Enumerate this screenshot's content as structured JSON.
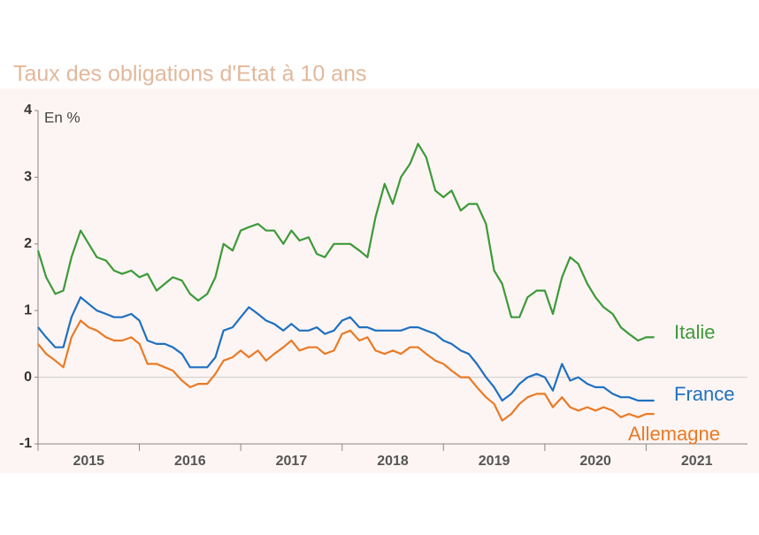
{
  "chart_data": {
    "type": "line",
    "title": "Taux des obligations d'Etat à 10 ans",
    "y_label": "En %",
    "x": [
      2015.0,
      2015.08,
      2015.17,
      2015.25,
      2015.33,
      2015.42,
      2015.5,
      2015.58,
      2015.67,
      2015.75,
      2015.83,
      2015.92,
      2016.0,
      2016.08,
      2016.17,
      2016.25,
      2016.33,
      2016.42,
      2016.5,
      2016.58,
      2016.67,
      2016.75,
      2016.83,
      2016.92,
      2017.0,
      2017.08,
      2017.17,
      2017.25,
      2017.33,
      2017.42,
      2017.5,
      2017.58,
      2017.67,
      2017.75,
      2017.83,
      2017.92,
      2018.0,
      2018.08,
      2018.17,
      2018.25,
      2018.33,
      2018.42,
      2018.5,
      2018.58,
      2018.67,
      2018.75,
      2018.83,
      2018.92,
      2019.0,
      2019.08,
      2019.17,
      2019.25,
      2019.33,
      2019.42,
      2019.5,
      2019.58,
      2019.67,
      2019.75,
      2019.83,
      2019.92,
      2020.0,
      2020.08,
      2020.17,
      2020.25,
      2020.33,
      2020.42,
      2020.5,
      2020.58,
      2020.67,
      2020.75,
      2020.83,
      2020.92,
      2021.0,
      2021.08
    ],
    "series": [
      {
        "name": "Italie",
        "color": "#3d9a3a",
        "values": [
          1.9,
          1.5,
          1.25,
          1.3,
          1.8,
          2.2,
          2.0,
          1.8,
          1.75,
          1.6,
          1.55,
          1.6,
          1.5,
          1.55,
          1.3,
          1.4,
          1.5,
          1.45,
          1.25,
          1.15,
          1.25,
          1.5,
          2.0,
          1.9,
          2.2,
          2.25,
          2.3,
          2.2,
          2.2,
          2.0,
          2.2,
          2.05,
          2.1,
          1.85,
          1.8,
          2.0,
          2.0,
          2.0,
          1.9,
          1.8,
          2.4,
          2.9,
          2.6,
          3.0,
          3.2,
          3.5,
          3.3,
          2.8,
          2.7,
          2.8,
          2.5,
          2.6,
          2.6,
          2.3,
          1.6,
          1.4,
          0.9,
          0.9,
          1.2,
          1.3,
          1.3,
          0.95,
          1.5,
          1.8,
          1.7,
          1.4,
          1.2,
          1.05,
          0.95,
          0.75,
          0.65,
          0.55,
          0.6,
          0.6
        ]
      },
      {
        "name": "France",
        "color": "#1f70c1",
        "values": [
          0.75,
          0.6,
          0.45,
          0.45,
          0.9,
          1.2,
          1.1,
          1.0,
          0.95,
          0.9,
          0.9,
          0.95,
          0.85,
          0.55,
          0.5,
          0.5,
          0.45,
          0.35,
          0.15,
          0.15,
          0.15,
          0.3,
          0.7,
          0.75,
          0.9,
          1.05,
          0.95,
          0.85,
          0.8,
          0.7,
          0.8,
          0.7,
          0.7,
          0.75,
          0.65,
          0.7,
          0.85,
          0.9,
          0.75,
          0.75,
          0.7,
          0.7,
          0.7,
          0.7,
          0.75,
          0.75,
          0.7,
          0.65,
          0.55,
          0.5,
          0.4,
          0.35,
          0.2,
          0.0,
          -0.15,
          -0.35,
          -0.25,
          -0.1,
          0.0,
          0.05,
          0.0,
          -0.2,
          0.2,
          -0.05,
          0.0,
          -0.1,
          -0.15,
          -0.15,
          -0.25,
          -0.3,
          -0.3,
          -0.35,
          -0.35,
          -0.35
        ]
      },
      {
        "name": "Allemagne",
        "color": "#ea7a25",
        "values": [
          0.5,
          0.35,
          0.25,
          0.15,
          0.6,
          0.85,
          0.75,
          0.7,
          0.6,
          0.55,
          0.55,
          0.6,
          0.5,
          0.2,
          0.2,
          0.15,
          0.1,
          -0.05,
          -0.15,
          -0.1,
          -0.1,
          0.05,
          0.25,
          0.3,
          0.4,
          0.3,
          0.4,
          0.25,
          0.35,
          0.45,
          0.55,
          0.4,
          0.45,
          0.45,
          0.35,
          0.4,
          0.65,
          0.7,
          0.55,
          0.6,
          0.4,
          0.35,
          0.4,
          0.35,
          0.45,
          0.45,
          0.35,
          0.25,
          0.2,
          0.1,
          0.0,
          0.0,
          -0.15,
          -0.3,
          -0.4,
          -0.65,
          -0.55,
          -0.4,
          -0.3,
          -0.25,
          -0.25,
          -0.45,
          -0.3,
          -0.45,
          -0.5,
          -0.45,
          -0.5,
          -0.45,
          -0.5,
          -0.6,
          -0.55,
          -0.6,
          -0.55,
          -0.55
        ]
      }
    ],
    "xlim": [
      2015,
      2022
    ],
    "xticks": [
      {
        "value": 2015,
        "label": "2015"
      },
      {
        "value": 2016,
        "label": "2016"
      },
      {
        "value": 2017,
        "label": "2017"
      },
      {
        "value": 2018,
        "label": "2018"
      },
      {
        "value": 2019,
        "label": "2019"
      },
      {
        "value": 2020,
        "label": "2020"
      },
      {
        "value": 2021,
        "label": "2021"
      }
    ],
    "ylim": [
      -1,
      4
    ],
    "yticks": [
      -1,
      0,
      1,
      2,
      3,
      4
    ]
  }
}
